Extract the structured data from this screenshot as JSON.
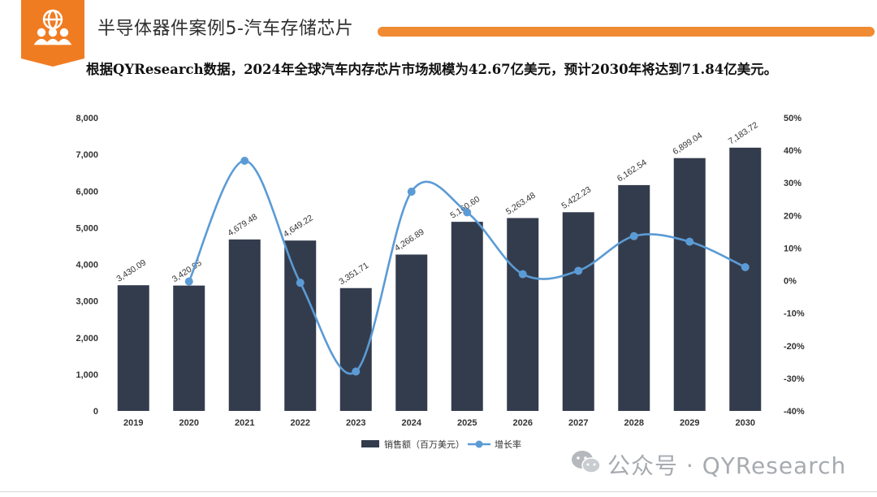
{
  "header": {
    "title": "半导体器件案例5-汽车存储芯片",
    "headline": "根据QYResearch数据，2024年全球汽车内存芯片市场规模为42.67亿美元，预计2030年将达到71.84亿美元。"
  },
  "badge": {
    "icon": "globe-people-icon",
    "color": "#f07c22"
  },
  "watermark": {
    "text": "公众号 · QYResearch",
    "icon": "wechat-icon"
  },
  "colors": {
    "bar": "#333c4d",
    "line": "#5b9bd5",
    "accent": "#f08a33"
  },
  "chart_data": {
    "type": "bar+line",
    "categories": [
      "2019",
      "2020",
      "2021",
      "2022",
      "2023",
      "2024",
      "2025",
      "2026",
      "2027",
      "2028",
      "2029",
      "2030"
    ],
    "series": [
      {
        "name": "销售额（百万美元）",
        "type": "bar",
        "axis": "left",
        "values": [
          3430.09,
          3420.95,
          4679.48,
          4649.22,
          3351.71,
          4266.89,
          5160.6,
          5263.48,
          5422.23,
          6162.54,
          6899.04,
          7183.72
        ],
        "labels": [
          "3,430.09",
          "3,420.95",
          "4,679.48",
          "4,649.22",
          "3,351.71",
          "4,266.89",
          "5,160.60",
          "5,263.48",
          "5,422.23",
          "6,162.54",
          "6,899.04",
          "7,183.72"
        ]
      },
      {
        "name": "增长率",
        "type": "line",
        "axis": "right",
        "smooth": true,
        "values": [
          null,
          -0.27,
          36.79,
          -0.65,
          -27.91,
          27.31,
          20.95,
          1.99,
          3.02,
          13.65,
          11.95,
          4.13
        ]
      }
    ],
    "left_axis": {
      "ylim": [
        0,
        8000
      ],
      "ticks": [
        "0",
        "1,000",
        "2,000",
        "3,000",
        "4,000",
        "5,000",
        "6,000",
        "7,000",
        "8,000"
      ]
    },
    "right_axis": {
      "ylim": [
        -40,
        50
      ],
      "ticks": [
        "-40%",
        "-30%",
        "-20%",
        "-10%",
        "0%",
        "10%",
        "20%",
        "30%",
        "40%",
        "50%"
      ]
    },
    "legend": {
      "placement": "bottom",
      "items": [
        "销售额（百万美元）",
        "增长率"
      ]
    },
    "grid": false
  }
}
